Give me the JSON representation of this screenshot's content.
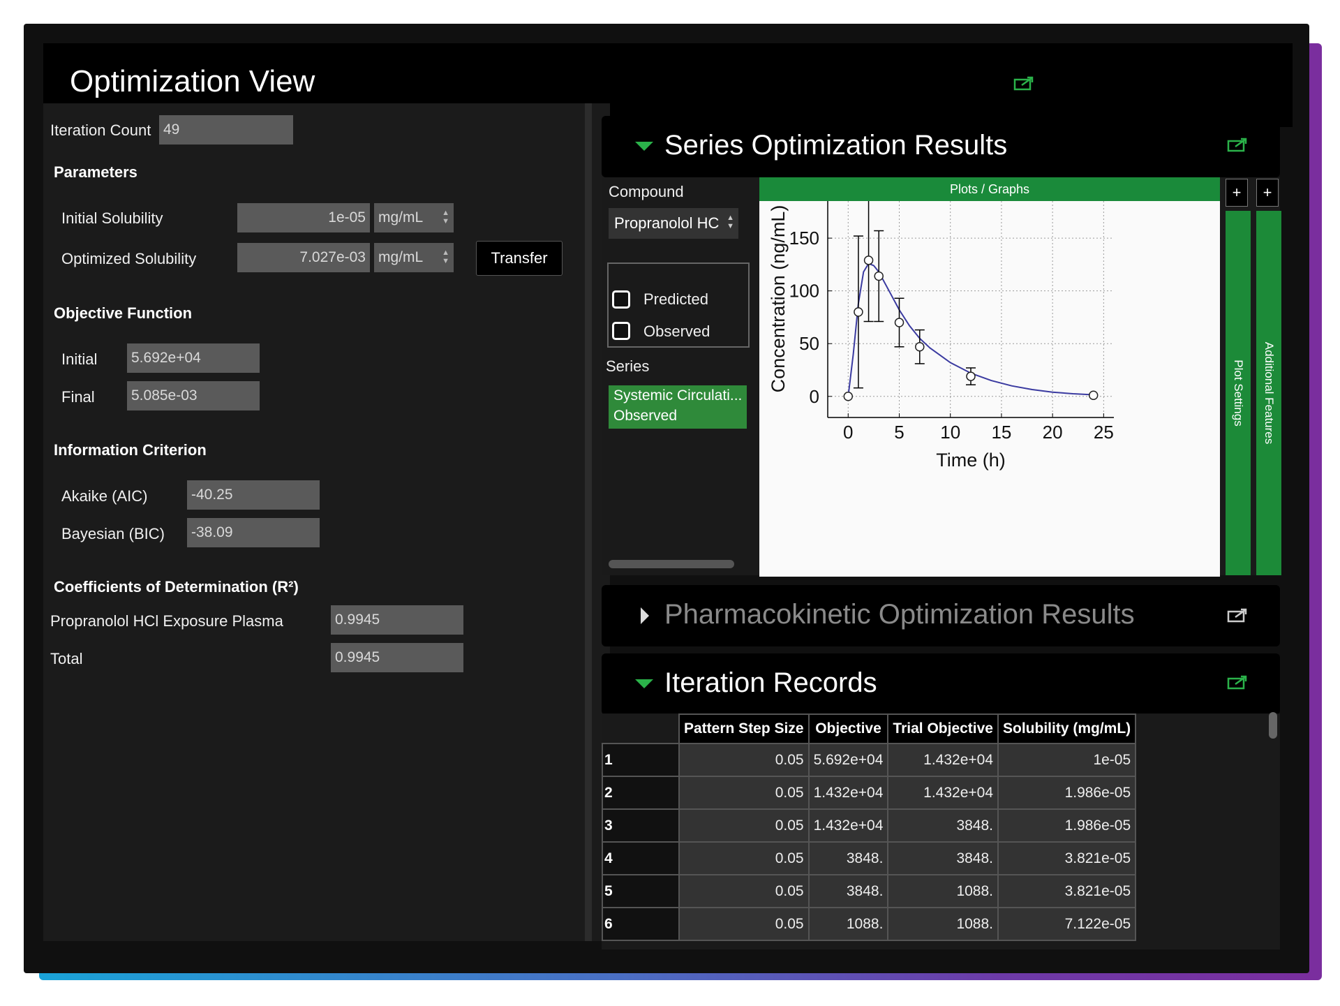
{
  "window": {
    "title": "Optimization View"
  },
  "left": {
    "iteration_count_label": "Iteration Count",
    "iteration_count_value": "49",
    "parameters_header": "Parameters",
    "initial_solubility_label": "Initial Solubility",
    "initial_solubility_value": "1e-05",
    "initial_solubility_unit": "mg/mL",
    "optimized_solubility_label": "Optimized Solubility",
    "optimized_solubility_value": "7.027e-03",
    "optimized_solubility_unit": "mg/mL",
    "transfer_button": "Transfer",
    "objective_header": "Objective Function",
    "objective_initial_label": "Initial",
    "objective_initial_value": "5.692e+04",
    "objective_final_label": "Final",
    "objective_final_value": "5.085e-03",
    "info_header": "Information Criterion",
    "aic_label": "Akaike (AIC)",
    "aic_value": "-40.25",
    "bic_label": "Bayesian (BIC)",
    "bic_value": "-38.09",
    "r2_header": "Coefficients of Determination (R²)",
    "r2_plasma_label": "Propranolol HCl Exposure Plasma",
    "r2_plasma_value": "0.9945",
    "r2_total_label": "Total",
    "r2_total_value": "0.9945"
  },
  "series_panel": {
    "title": "Series Optimization Results",
    "compound_label": "Compound",
    "compound_value": "Propranolol HC",
    "predicted_label": "Predicted",
    "observed_label": "Observed",
    "series_label": "Series",
    "series_item_line1": "Systemic Circulati...",
    "series_item_line2": "Observed",
    "plots_bar": "Plots / Graphs",
    "plot_settings_tab": "Plot Settings",
    "additional_features_tab": "Additional Features",
    "plus1": "+",
    "plus2": "+"
  },
  "pk_panel": {
    "title": "Pharmacokinetic Optimization Results"
  },
  "records_panel": {
    "title": "Iteration Records",
    "columns": [
      "Pattern Step Size",
      "Objective",
      "Trial Objective",
      "Solubility (mg/mL)"
    ],
    "rows": [
      {
        "n": "1",
        "step": "0.05",
        "obj": "5.692e+04",
        "trial": "1.432e+04",
        "sol": "1e-05"
      },
      {
        "n": "2",
        "step": "0.05",
        "obj": "1.432e+04",
        "trial": "1.432e+04",
        "sol": "1.986e-05"
      },
      {
        "n": "3",
        "step": "0.05",
        "obj": "1.432e+04",
        "trial": "3848.",
        "sol": "1.986e-05"
      },
      {
        "n": "4",
        "step": "0.05",
        "obj": "3848.",
        "trial": "3848.",
        "sol": "3.821e-05"
      },
      {
        "n": "5",
        "step": "0.05",
        "obj": "3848.",
        "trial": "1088.",
        "sol": "3.821e-05"
      },
      {
        "n": "6",
        "step": "0.05",
        "obj": "1088.",
        "trial": "1088.",
        "sol": "7.122e-05"
      }
    ]
  },
  "colors": {
    "accent_green": "#2bb24a",
    "line_blue": "#3a3aa0"
  },
  "chart_data": {
    "type": "line",
    "xlabel": "Time (h)",
    "ylabel": "Concentration (ng/mL)",
    "xlim": [
      -2,
      26
    ],
    "ylim": [
      -20,
      205
    ],
    "xticks": [
      0,
      5,
      10,
      15,
      20,
      25
    ],
    "yticks": [
      0,
      50,
      100,
      150,
      200
    ],
    "grid": true,
    "series": [
      {
        "kind": "predicted_line",
        "x": [
          0,
          0.5,
          1,
          1.5,
          2,
          2.5,
          3,
          4,
          5,
          6,
          7,
          8,
          10,
          12,
          14,
          16,
          18,
          20,
          22,
          24
        ],
        "y": [
          0,
          40,
          88,
          118,
          126,
          124,
          118,
          100,
          82,
          67,
          55,
          46,
          32,
          22,
          15,
          10,
          6.5,
          4,
          2.5,
          1.5
        ]
      },
      {
        "kind": "observed_points",
        "x": [
          0,
          1,
          2,
          3,
          5,
          7,
          12,
          24
        ],
        "y": [
          0,
          80,
          129,
          114,
          70,
          47,
          19,
          1
        ],
        "err": [
          0,
          72,
          58,
          43,
          23,
          16,
          8,
          0
        ]
      }
    ]
  }
}
